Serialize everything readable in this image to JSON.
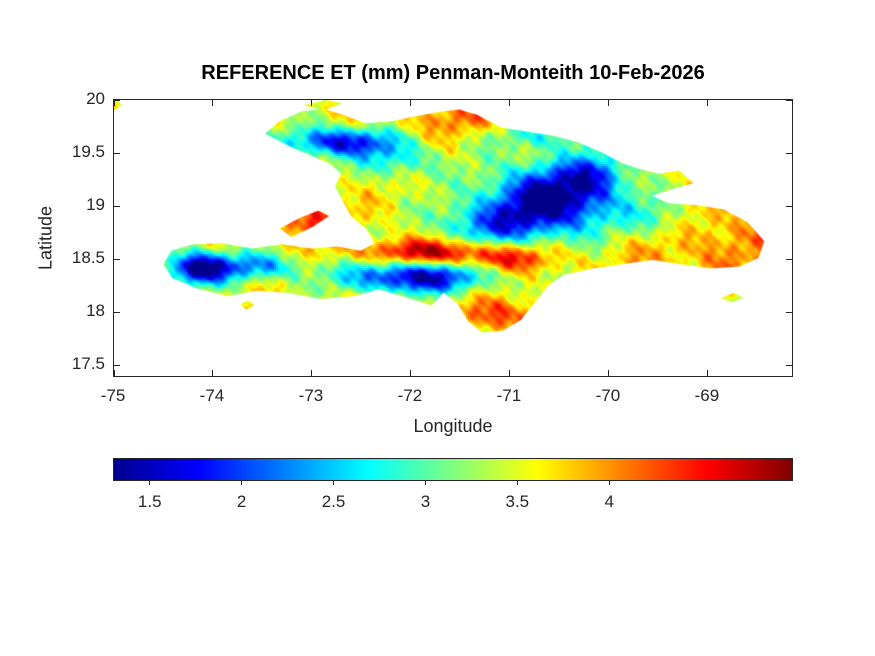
{
  "chart_data": {
    "type": "heatmap",
    "title": "REFERENCE ET (mm) Penman-Monteith 10-Feb-2026",
    "xlabel": "Longitude",
    "ylabel": "Latitude",
    "region": "Hispaniola (Haiti and Dominican Republic)",
    "units": "mm",
    "xlim": [
      -75,
      -68.13
    ],
    "ylim": [
      17.38,
      20
    ],
    "x_ticks": [
      -75,
      -74,
      -73,
      -72,
      -71,
      -70,
      -69
    ],
    "y_ticks": [
      17.5,
      18,
      18.5,
      19,
      19.5,
      20
    ],
    "grid": false,
    "colorbar": {
      "orientation": "horizontal",
      "colormap": "jet",
      "range": [
        1.3,
        5.0
      ],
      "ticks": [
        1.5,
        2,
        2.5,
        3,
        3.5,
        4
      ]
    },
    "map": {
      "base_value": 3.55,
      "value_clamp": [
        1.35,
        4.95
      ],
      "polygons": [
        {
          "name": "hispaniola",
          "pts": [
            [
              -73.47,
              19.68
            ],
            [
              -73.32,
              19.8
            ],
            [
              -73.1,
              19.89
            ],
            [
              -72.88,
              19.92
            ],
            [
              -72.68,
              19.86
            ],
            [
              -72.45,
              19.78
            ],
            [
              -72.18,
              19.8
            ],
            [
              -71.92,
              19.85
            ],
            [
              -71.68,
              19.89
            ],
            [
              -71.5,
              19.91
            ],
            [
              -71.32,
              19.86
            ],
            [
              -71.08,
              19.74
            ],
            [
              -70.82,
              19.7
            ],
            [
              -70.55,
              19.66
            ],
            [
              -70.3,
              19.6
            ],
            [
              -70.05,
              19.5
            ],
            [
              -69.85,
              19.4
            ],
            [
              -69.65,
              19.34
            ],
            [
              -69.48,
              19.3
            ],
            [
              -69.27,
              19.33
            ],
            [
              -69.13,
              19.21
            ],
            [
              -69.32,
              19.16
            ],
            [
              -69.55,
              19.09
            ],
            [
              -69.38,
              19.02
            ],
            [
              -69.08,
              19.0
            ],
            [
              -68.82,
              18.96
            ],
            [
              -68.58,
              18.84
            ],
            [
              -68.41,
              18.66
            ],
            [
              -68.47,
              18.5
            ],
            [
              -68.66,
              18.42
            ],
            [
              -68.95,
              18.4
            ],
            [
              -69.25,
              18.44
            ],
            [
              -69.55,
              18.48
            ],
            [
              -69.85,
              18.44
            ],
            [
              -70.15,
              18.4
            ],
            [
              -70.44,
              18.34
            ],
            [
              -70.6,
              18.24
            ],
            [
              -70.74,
              18.07
            ],
            [
              -70.88,
              17.91
            ],
            [
              -71.06,
              17.81
            ],
            [
              -71.27,
              17.79
            ],
            [
              -71.42,
              17.91
            ],
            [
              -71.52,
              18.07
            ],
            [
              -71.66,
              18.17
            ],
            [
              -71.78,
              18.05
            ],
            [
              -72.02,
              18.12
            ],
            [
              -72.32,
              18.2
            ],
            [
              -72.56,
              18.14
            ],
            [
              -72.9,
              18.11
            ],
            [
              -73.25,
              18.17
            ],
            [
              -73.55,
              18.19
            ],
            [
              -73.85,
              18.14
            ],
            [
              -74.16,
              18.21
            ],
            [
              -74.41,
              18.31
            ],
            [
              -74.5,
              18.44
            ],
            [
              -74.42,
              18.57
            ],
            [
              -74.2,
              18.63
            ],
            [
              -73.9,
              18.64
            ],
            [
              -73.6,
              18.59
            ],
            [
              -73.3,
              18.63
            ],
            [
              -73.0,
              18.59
            ],
            [
              -72.74,
              18.61
            ],
            [
              -72.5,
              18.57
            ],
            [
              -72.36,
              18.64
            ],
            [
              -72.44,
              18.77
            ],
            [
              -72.6,
              18.9
            ],
            [
              -72.68,
              19.04
            ],
            [
              -72.76,
              19.18
            ],
            [
              -72.7,
              19.3
            ],
            [
              -72.82,
              19.4
            ],
            [
              -73.0,
              19.47
            ],
            [
              -73.2,
              19.55
            ]
          ]
        },
        {
          "name": "ile-de-la-gonave",
          "pts": [
            [
              -73.32,
              18.78
            ],
            [
              -73.12,
              18.88
            ],
            [
              -72.93,
              18.95
            ],
            [
              -72.82,
              18.9
            ],
            [
              -72.98,
              18.8
            ],
            [
              -73.2,
              18.7
            ]
          ]
        },
        {
          "name": "ile-de-la-tortue",
          "pts": [
            [
              -73.08,
              19.95
            ],
            [
              -72.85,
              20.0
            ],
            [
              -72.68,
              19.97
            ],
            [
              -72.88,
              19.9
            ]
          ]
        },
        {
          "name": "ile-a-vache",
          "pts": [
            [
              -73.72,
              18.06
            ],
            [
              -73.64,
              18.1
            ],
            [
              -73.58,
              18.05
            ],
            [
              -73.66,
              18.01
            ]
          ]
        },
        {
          "name": "isla-saona",
          "pts": [
            [
              -68.85,
              18.12
            ],
            [
              -68.72,
              18.17
            ],
            [
              -68.62,
              18.12
            ],
            [
              -68.74,
              18.08
            ]
          ]
        },
        {
          "name": "northwest-corner-speck",
          "pts": [
            [
              -75.0,
              19.9
            ],
            [
              -74.92,
              19.95
            ],
            [
              -74.96,
              20.0
            ],
            [
              -75.0,
              20.0
            ]
          ]
        }
      ],
      "features": [
        {
          "name": "cordillera-central-low",
          "lon": -70.55,
          "lat": 19.05,
          "sx": 0.45,
          "sy": 0.24,
          "amp": -2.4
        },
        {
          "name": "cordillera-ne-low",
          "lon": -70.1,
          "lat": 19.3,
          "sx": 0.22,
          "sy": 0.14,
          "amp": -1.0
        },
        {
          "name": "cordillera-sw-low",
          "lon": -71.25,
          "lat": 18.8,
          "sx": 0.35,
          "sy": 0.16,
          "amp": -1.1
        },
        {
          "name": "massif-du-nord-low",
          "lon": -72.7,
          "lat": 19.6,
          "sx": 0.38,
          "sy": 0.1,
          "amp": -1.9
        },
        {
          "name": "plateau-central-low",
          "lon": -72.1,
          "lat": 19.42,
          "sx": 0.28,
          "sy": 0.12,
          "amp": -0.8
        },
        {
          "name": "selle-baoruco-low",
          "lon": -71.95,
          "lat": 18.32,
          "sx": 0.5,
          "sy": 0.11,
          "amp": -2.1
        },
        {
          "name": "massif-hotte-low",
          "lon": -74.15,
          "lat": 18.4,
          "sx": 0.22,
          "sy": 0.11,
          "amp": -2.3
        },
        {
          "name": "tiburon-mid-low",
          "lon": -73.55,
          "lat": 18.42,
          "sx": 0.32,
          "sy": 0.09,
          "amp": -1.2
        },
        {
          "name": "cordillera-oriental-low",
          "lon": -69.45,
          "lat": 18.88,
          "sx": 0.28,
          "sy": 0.16,
          "amp": -0.8
        },
        {
          "name": "septentrional-low",
          "lon": -70.6,
          "lat": 19.66,
          "sx": 0.45,
          "sy": 0.09,
          "amp": -0.7
        },
        {
          "name": "enriquillo-valley-high",
          "lon": -71.75,
          "lat": 18.55,
          "sx": 0.55,
          "sy": 0.09,
          "amp": 1.4
        },
        {
          "name": "azua-valley-high",
          "lon": -70.95,
          "lat": 18.48,
          "sx": 0.35,
          "sy": 0.09,
          "amp": 0.7
        },
        {
          "name": "eastern-plains-high",
          "lon": -69.0,
          "lat": 18.7,
          "sx": 0.7,
          "sy": 0.35,
          "amp": 0.5
        },
        {
          "name": "montecristi-coast-high",
          "lon": -71.55,
          "lat": 19.82,
          "sx": 0.45,
          "sy": 0.13,
          "amp": 0.5
        },
        {
          "name": "gonave-high",
          "lon": -73.05,
          "lat": 18.85,
          "sx": 0.28,
          "sy": 0.12,
          "amp": 0.9
        },
        {
          "name": "beata-coast-high",
          "lon": -71.1,
          "lat": 17.95,
          "sx": 0.3,
          "sy": 0.12,
          "amp": 0.8
        }
      ]
    }
  },
  "style": {
    "axis_color": "#262626",
    "title_color": "#000000",
    "background": "#ffffff"
  }
}
